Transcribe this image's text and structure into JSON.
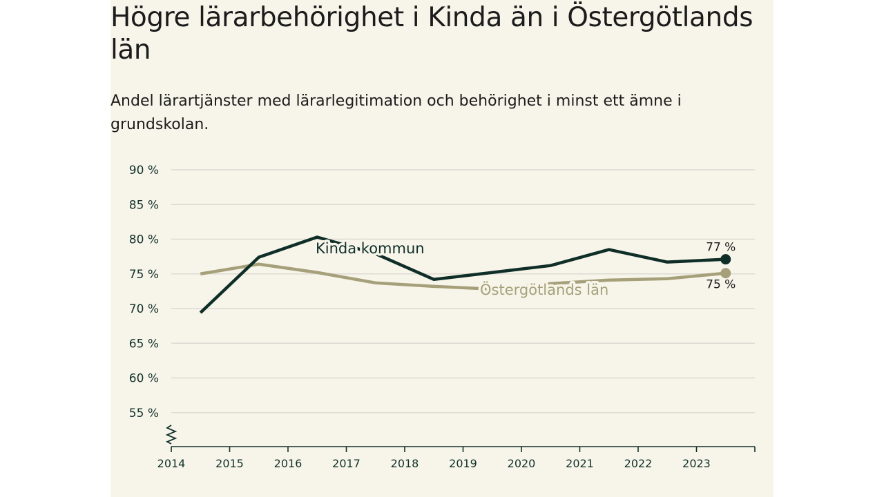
{
  "header": {
    "title": "Högre lärarbehörighet i Kinda än i Östergötlands län",
    "subtitle": "Andel lärartjänster med lärarlegitimation och behörighet i minst ett ämne i grundskolan."
  },
  "colors": {
    "kinda": "#0f2e28",
    "lan": "#a6a07a",
    "grid": "#dcdad2",
    "axis": "#12302a"
  },
  "chart_data": {
    "type": "line",
    "title": "Högre lärarbehörighet i Kinda än i Östergötlands län",
    "subtitle": "Andel lärartjänster med lärarlegitimation och behörighet i minst ett ämne i grundskolan.",
    "xlabel": "",
    "ylabel": "",
    "x_ticks": [
      "2014",
      "2015",
      "2016",
      "2017",
      "2018",
      "2019",
      "2020",
      "2021",
      "2022",
      "2023"
    ],
    "y_ticks": [
      "90 %",
      "85 %",
      "80 %",
      "75 %",
      "70 %",
      "65 %",
      "60 %",
      "55 %"
    ],
    "y_tick_values": [
      90,
      85,
      80,
      75,
      70,
      65,
      60,
      55
    ],
    "ylim": [
      50.5,
      90
    ],
    "xlim": [
      2014,
      2024
    ],
    "grid": true,
    "axis_break": true,
    "series": [
      {
        "name": "Kinda kommun",
        "x": [
          2014.5,
          2015.5,
          2016.5,
          2017.5,
          2018.5,
          2019.5,
          2020.5,
          2021.5,
          2022.5,
          2023.5
        ],
        "values": [
          69.4,
          77.4,
          80.3,
          77.9,
          74.2,
          75.2,
          76.2,
          78.5,
          76.7,
          77.1
        ],
        "end_label": "77 %"
      },
      {
        "name": "Östergötlands län",
        "x": [
          2014.5,
          2015.5,
          2016.5,
          2017.5,
          2018.5,
          2019.5,
          2020.5,
          2021.5,
          2022.5,
          2023.5
        ],
        "values": [
          75.0,
          76.4,
          75.2,
          73.7,
          73.2,
          72.8,
          73.6,
          74.1,
          74.3,
          75.1
        ],
        "end_label": "75 %"
      }
    ]
  }
}
